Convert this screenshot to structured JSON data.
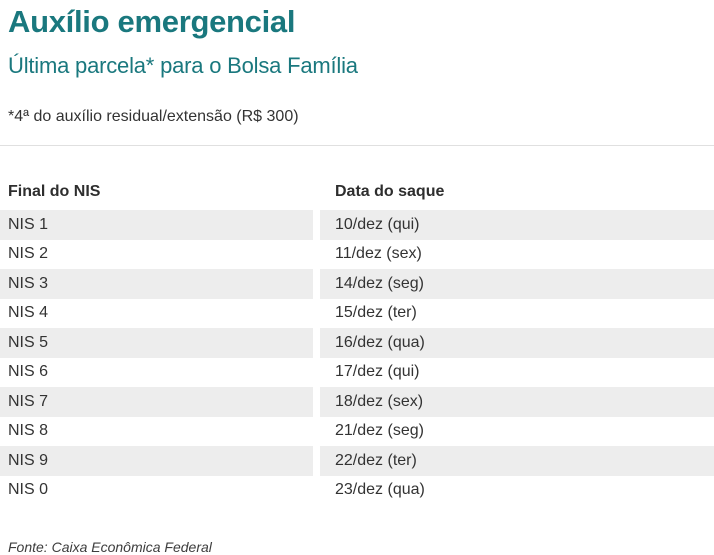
{
  "chart_data": {
    "type": "table",
    "title": "Auxílio emergencial",
    "subtitle": "Última parcela* para o Bolsa Família",
    "note": "*4ª do auxílio residual/extensão (R$ 300)",
    "columns": [
      "Final do NIS",
      "Data do saque"
    ],
    "rows": [
      [
        "NIS 1",
        "10/dez (qui)"
      ],
      [
        "NIS 2",
        "11/dez (sex)"
      ],
      [
        "NIS 3",
        "14/dez (seg)"
      ],
      [
        "NIS 4",
        "15/dez (ter)"
      ],
      [
        "NIS 5",
        "16/dez (qua)"
      ],
      [
        "NIS 6",
        "17/dez (qui)"
      ],
      [
        "NIS 7",
        "18/dez (sex)"
      ],
      [
        "NIS 8",
        "21/dez (seg)"
      ],
      [
        "NIS 9",
        "22/dez (ter)"
      ],
      [
        "NIS 0",
        "23/dez (qua)"
      ]
    ],
    "source": "Fonte: Caixa Econômica Federal",
    "layout": {
      "legend": "none",
      "grid": "off",
      "striped_rows": true,
      "first_row_striped": true
    }
  },
  "colors": {
    "accent": "#1a787e",
    "text": "#333333",
    "stripe": "#ededed",
    "divider": "#e0e0e0"
  }
}
